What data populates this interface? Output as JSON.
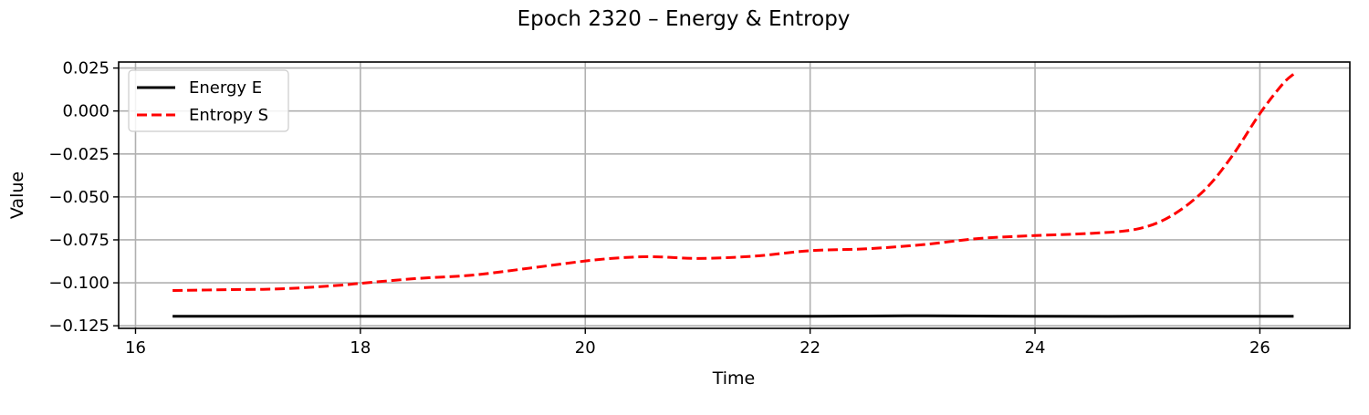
{
  "chart_data": {
    "type": "line",
    "title": "Epoch 2320 – Energy & Entropy",
    "xlabel": "Time",
    "ylabel": "Value",
    "xlim": [
      15.85,
      26.8
    ],
    "ylim": [
      -0.1265,
      0.0285
    ],
    "xticks": [
      16,
      18,
      20,
      22,
      24,
      26
    ],
    "xtick_labels": [
      "16",
      "18",
      "20",
      "22",
      "24",
      "26"
    ],
    "yticks": [
      0.025,
      0.0,
      -0.025,
      -0.05,
      -0.075,
      -0.1,
      -0.125
    ],
    "ytick_labels": [
      "0.025",
      "0.000",
      "−0.025",
      "−0.050",
      "−0.075",
      "−0.100",
      "−0.125"
    ],
    "grid": true,
    "legend_position": "top-left",
    "series": [
      {
        "name": "Energy E",
        "color": "#000000",
        "style": "solid",
        "x": [
          16.33,
          17.0,
          18.0,
          19.0,
          20.0,
          21.0,
          21.8,
          22.5,
          23.0,
          23.5,
          24.0,
          25.0,
          26.0,
          26.3
        ],
        "y": [
          -0.1195,
          -0.1195,
          -0.1195,
          -0.1195,
          -0.1195,
          -0.1195,
          -0.1195,
          -0.1193,
          -0.1192,
          -0.1193,
          -0.1195,
          -0.1195,
          -0.1195,
          -0.1195
        ]
      },
      {
        "name": "Entropy S",
        "color": "#ff0000",
        "style": "dashed",
        "x": [
          16.33,
          16.8,
          17.3,
          17.8,
          18.0,
          18.5,
          19.0,
          19.5,
          20.0,
          20.3,
          20.6,
          21.0,
          21.5,
          22.0,
          22.5,
          23.0,
          23.5,
          24.0,
          24.5,
          24.9,
          25.2,
          25.5,
          25.75,
          26.0,
          26.2,
          26.3
        ],
        "y": [
          -0.1045,
          -0.104,
          -0.1035,
          -0.1015,
          -0.1003,
          -0.0975,
          -0.0955,
          -0.0915,
          -0.0873,
          -0.0855,
          -0.0848,
          -0.0858,
          -0.0845,
          -0.0813,
          -0.0802,
          -0.0778,
          -0.0742,
          -0.0725,
          -0.0712,
          -0.0688,
          -0.0615,
          -0.0465,
          -0.0265,
          -0.0015,
          0.0155,
          0.0215
        ]
      }
    ]
  }
}
